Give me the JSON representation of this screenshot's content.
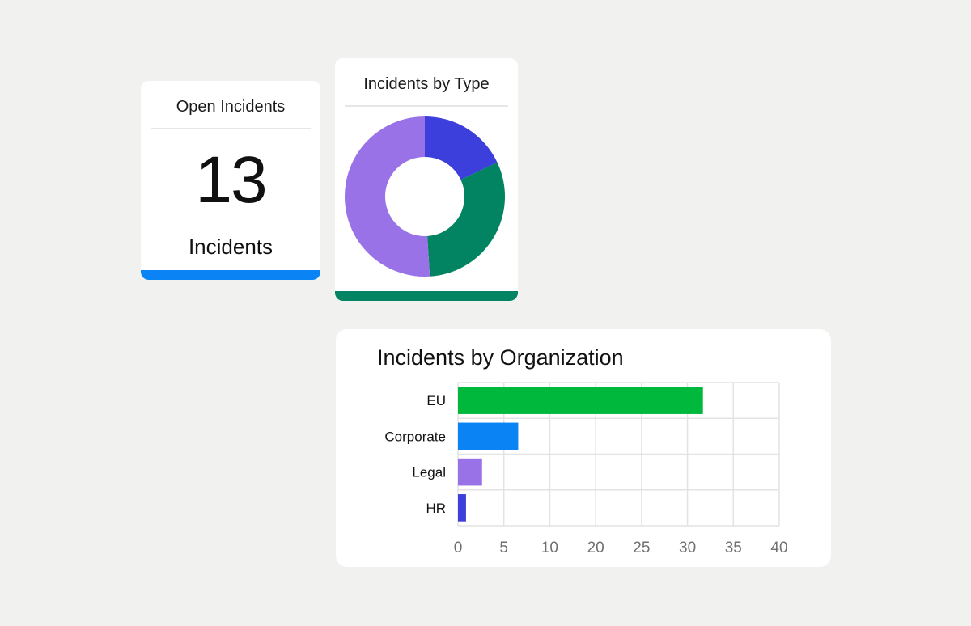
{
  "kpi": {
    "title": "Open Incidents",
    "value": "13",
    "unit": "Incidents",
    "accent": "#0a84f4"
  },
  "donut": {
    "title": "Incidents by Type",
    "accent": "#028463"
  },
  "bar": {
    "title": "Incidents by Organization"
  },
  "chart_data": [
    {
      "type": "pie",
      "title": "Incidents by Type",
      "donut": true,
      "slices": [
        {
          "value": 18,
          "color": "#3c3fdb"
        },
        {
          "value": 31,
          "color": "#028463"
        },
        {
          "value": 51,
          "color": "#9a72e8"
        }
      ]
    },
    {
      "type": "bar",
      "orientation": "horizontal",
      "title": "Incidents by Organization",
      "categories": [
        "EU",
        "Corporate",
        "Legal",
        "HR"
      ],
      "values": [
        30.5,
        7.5,
        3,
        1
      ],
      "colors": [
        "#00b83c",
        "#0a84f4",
        "#9a72e8",
        "#3c3fdb"
      ],
      "xlim": [
        0,
        40
      ],
      "xticks": [
        "0",
        "5",
        "10",
        "20",
        "25",
        "30",
        "35",
        "40"
      ],
      "grid": true
    }
  ]
}
